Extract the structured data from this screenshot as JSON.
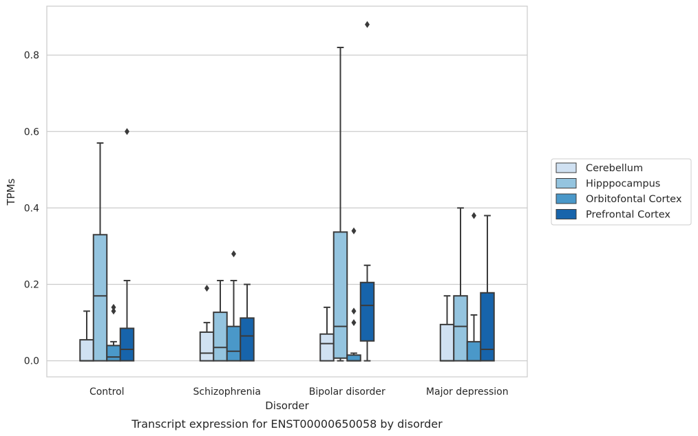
{
  "chart_data": {
    "type": "boxplot",
    "caption": "Transcript expression for ENST00000650058 by disorder",
    "xlabel": "Disorder",
    "ylabel": "TPMs",
    "ylim": [
      -0.042,
      0.928
    ],
    "yticks": [
      0.0,
      0.2,
      0.4,
      0.6,
      0.8
    ],
    "ytick_labels": [
      "0.0",
      "0.2",
      "0.4",
      "0.6",
      "0.8"
    ],
    "grid": "horizontal",
    "legend_position": "right",
    "categories": [
      "Control",
      "Schizophrenia",
      "Bipolar disorder",
      "Major depression"
    ],
    "series": [
      {
        "name": "Cerebellum",
        "color": "#d0e1f2",
        "boxes": [
          {
            "whislo": 0.0,
            "q1": 0.0,
            "med": 0.0,
            "q3": 0.055,
            "whishi": 0.13,
            "fliers": []
          },
          {
            "whislo": 0.0,
            "q1": 0.0,
            "med": 0.02,
            "q3": 0.075,
            "whishi": 0.1,
            "fliers": [
              0.19
            ]
          },
          {
            "whislo": 0.0,
            "q1": 0.0,
            "med": 0.045,
            "q3": 0.07,
            "whishi": 0.14,
            "fliers": []
          },
          {
            "whislo": 0.0,
            "q1": 0.0,
            "med": 0.0,
            "q3": 0.095,
            "whishi": 0.17,
            "fliers": []
          }
        ]
      },
      {
        "name": "Hipppocampus",
        "color": "#94c4df",
        "boxes": [
          {
            "whislo": 0.0,
            "q1": 0.0,
            "med": 0.17,
            "q3": 0.33,
            "whishi": 0.57,
            "fliers": []
          },
          {
            "whislo": 0.0,
            "q1": 0.0,
            "med": 0.035,
            "q3": 0.127,
            "whishi": 0.21,
            "fliers": []
          },
          {
            "whislo": 0.0,
            "q1": 0.007,
            "med": 0.09,
            "q3": 0.337,
            "whishi": 0.82,
            "fliers": []
          },
          {
            "whislo": 0.0,
            "q1": 0.0,
            "med": 0.09,
            "q3": 0.17,
            "whishi": 0.4,
            "fliers": []
          }
        ]
      },
      {
        "name": "Orbitofontal Cortex",
        "color": "#4a98c9",
        "boxes": [
          {
            "whislo": 0.0,
            "q1": 0.0,
            "med": 0.01,
            "q3": 0.04,
            "whishi": 0.05,
            "fliers": [
              0.13,
              0.14
            ]
          },
          {
            "whislo": 0.0,
            "q1": 0.0,
            "med": 0.025,
            "q3": 0.09,
            "whishi": 0.21,
            "fliers": [
              0.28
            ]
          },
          {
            "whislo": 0.0,
            "q1": 0.0,
            "med": 0.0,
            "q3": 0.015,
            "whishi": 0.02,
            "fliers": [
              0.1,
              0.13,
              0.34
            ]
          },
          {
            "whislo": 0.0,
            "q1": 0.0,
            "med": 0.0,
            "q3": 0.05,
            "whishi": 0.12,
            "fliers": [
              0.38
            ]
          }
        ]
      },
      {
        "name": "Prefrontal Cortex",
        "color": "#1764ab",
        "boxes": [
          {
            "whislo": 0.0,
            "q1": 0.0,
            "med": 0.03,
            "q3": 0.085,
            "whishi": 0.21,
            "fliers": [
              0.6
            ]
          },
          {
            "whislo": 0.0,
            "q1": 0.0,
            "med": 0.065,
            "q3": 0.112,
            "whishi": 0.2,
            "fliers": []
          },
          {
            "whislo": 0.0,
            "q1": 0.052,
            "med": 0.145,
            "q3": 0.205,
            "whishi": 0.25,
            "fliers": [
              0.88
            ]
          },
          {
            "whislo": 0.0,
            "q1": 0.0,
            "med": 0.03,
            "q3": 0.178,
            "whishi": 0.38,
            "fliers": []
          }
        ]
      }
    ]
  }
}
